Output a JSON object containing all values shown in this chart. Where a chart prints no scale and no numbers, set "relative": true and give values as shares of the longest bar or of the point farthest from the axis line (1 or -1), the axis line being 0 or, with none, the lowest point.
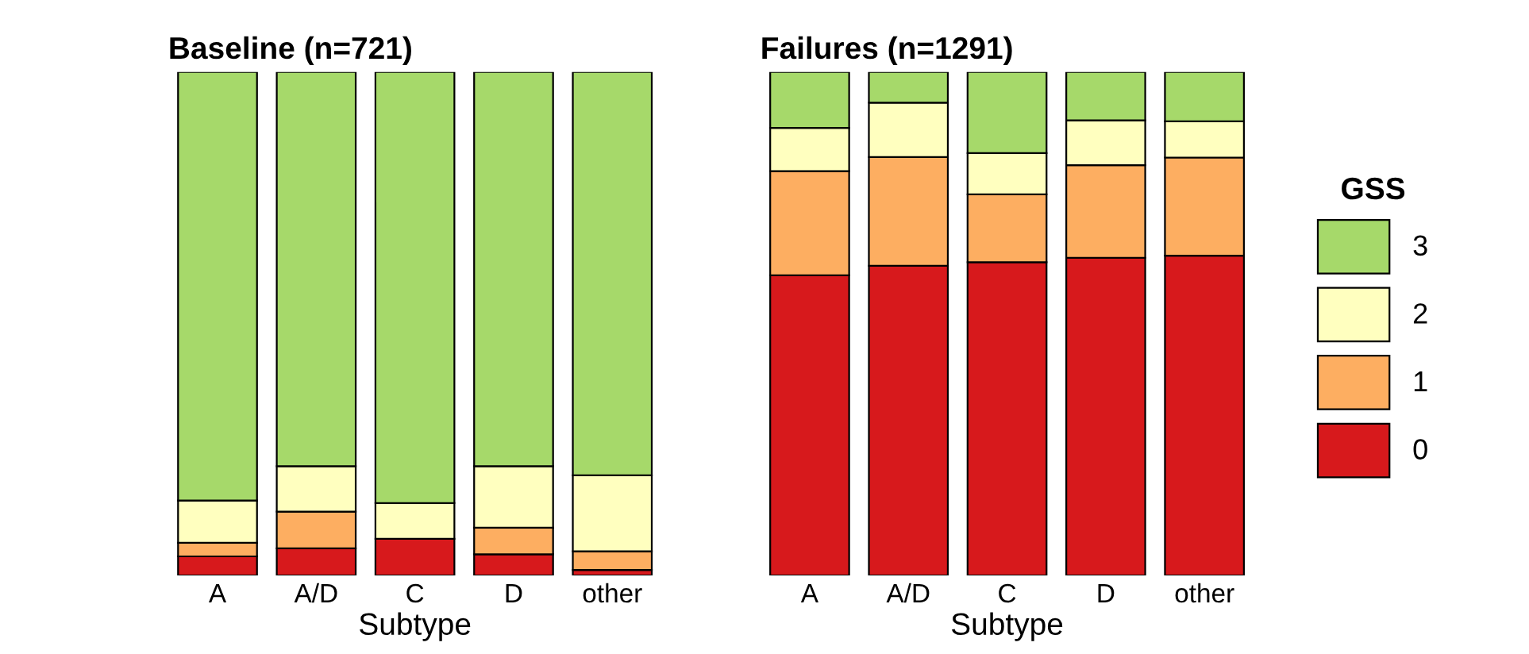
{
  "chart_data": [
    {
      "type": "bar",
      "title": "Baseline (n=721)",
      "xlabel": "Subtype",
      "categories": [
        "A",
        "A/D",
        "C",
        "D",
        "other"
      ],
      "stacked": true,
      "relative": true,
      "legend": "right",
      "legend_title": "GSS",
      "series": [
        {
          "name": "0",
          "color": "#d7191c",
          "values": [
            0.038,
            0.054,
            0.073,
            0.042,
            0.011
          ]
        },
        {
          "name": "1",
          "color": "#fdae61",
          "values": [
            0.027,
            0.073,
            0,
            0.053,
            0.037
          ]
        },
        {
          "name": "2",
          "color": "#ffffbf",
          "values": [
            0.084,
            0.09,
            0.071,
            0.122,
            0.151
          ]
        },
        {
          "name": "3",
          "color": "#a6d96a",
          "values": [
            0.851,
            0.783,
            0.856,
            0.783,
            0.801
          ]
        }
      ]
    },
    {
      "type": "bar",
      "title": "Failures (n=1291)",
      "xlabel": "Subtype",
      "categories": [
        "A",
        "A/D",
        "C",
        "D",
        "other"
      ],
      "stacked": true,
      "relative": true,
      "series": [
        {
          "name": "0",
          "color": "#d7191c",
          "values": [
            0.596,
            0.615,
            0.622,
            0.631,
            0.635
          ]
        },
        {
          "name": "1",
          "color": "#fdae61",
          "values": [
            0.207,
            0.216,
            0.135,
            0.184,
            0.195
          ]
        },
        {
          "name": "2",
          "color": "#ffffbf",
          "values": [
            0.086,
            0.108,
            0.082,
            0.089,
            0.072
          ]
        },
        {
          "name": "3",
          "color": "#a6d96a",
          "values": [
            0.111,
            0.061,
            0.161,
            0.096,
            0.098
          ]
        }
      ]
    }
  ]
}
